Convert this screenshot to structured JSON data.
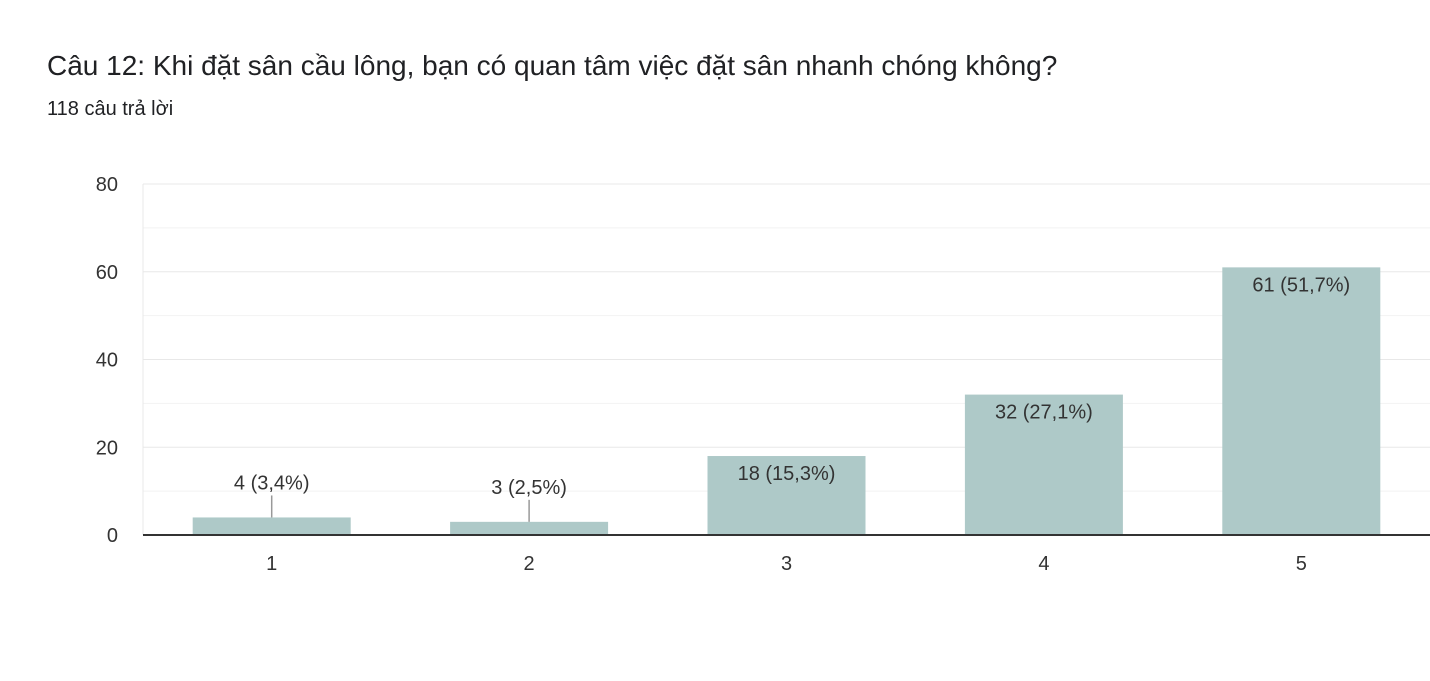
{
  "header": {
    "title": "Câu 12: Khi đặt sân cầu lông, bạn có quan tâm việc đặt sân nhanh chóng không?",
    "response_count": "118 câu trả lời"
  },
  "colors": {
    "bar": "#aec9c8",
    "grid": "#e8e8e8",
    "axis": "#333333",
    "text": "#333333"
  },
  "chart_data": {
    "type": "bar",
    "categories": [
      "1",
      "2",
      "3",
      "4",
      "5"
    ],
    "values": [
      4,
      3,
      18,
      32,
      61
    ],
    "data_labels": [
      "4 (3,4%)",
      "3 (2,5%)",
      "18 (15,3%)",
      "32 (27,1%)",
      "61 (51,7%)"
    ],
    "ylim": [
      0,
      80
    ],
    "yticks": [
      0,
      20,
      40,
      60,
      80
    ],
    "grid": true,
    "legend": "none"
  }
}
